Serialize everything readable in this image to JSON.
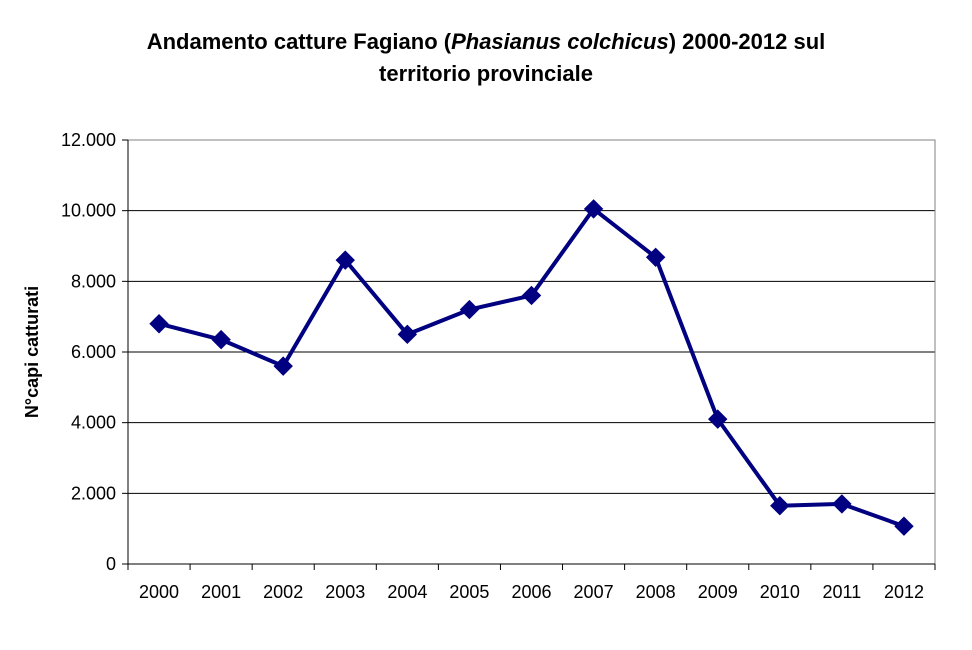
{
  "chart_data": {
    "type": "line",
    "title_part1": "Andamento catture Fagiano (",
    "title_italic": "Phasianus colchicus",
    "title_part2": ") 2000-2012 sul",
    "title_line2": "territorio provinciale",
    "ylabel": "N°capi catturati",
    "xlabel": "",
    "ylim": [
      0,
      12000
    ],
    "y_ticks": [
      0,
      2000,
      4000,
      6000,
      8000,
      10000,
      12000
    ],
    "y_tick_labels": [
      "0",
      "2.000",
      "4.000",
      "6.000",
      "8.000",
      "10.000",
      "12.000"
    ],
    "grid": true,
    "legend": "none",
    "categories": [
      "2000",
      "2001",
      "2002",
      "2003",
      "2004",
      "2005",
      "2006",
      "2007",
      "2008",
      "2009",
      "2010",
      "2011",
      "2012"
    ],
    "series": [
      {
        "values": [
          6800,
          6350,
          5600,
          8600,
          6500,
          7200,
          7600,
          10050,
          8680,
          4100,
          1650,
          1700,
          1070
        ],
        "color": "#000080",
        "marker": "diamond"
      }
    ]
  }
}
